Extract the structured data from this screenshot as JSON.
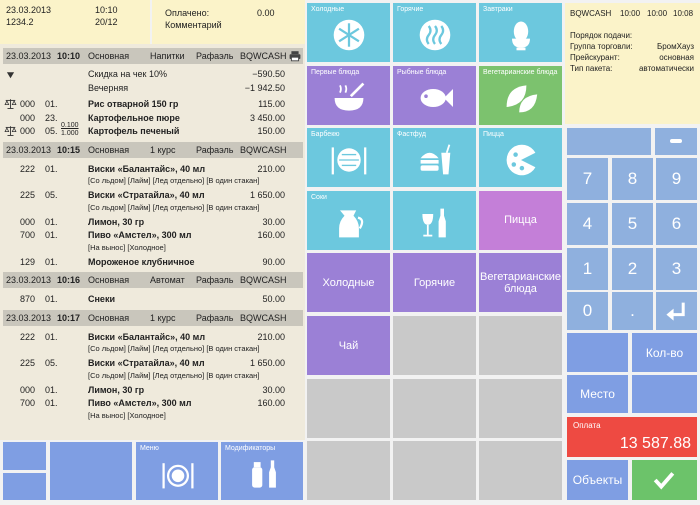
{
  "header": {
    "date": "23.03.2013",
    "time": "10:10",
    "check": "1234.2",
    "table": "20/12",
    "paid_label": "Оплачено:",
    "paid": "0.00",
    "comment": "Комментарий"
  },
  "orders": [
    {
      "date": "23.03.2013",
      "time": "10:10",
      "type": "Основная",
      "course": "Напитки",
      "waiter": "Рафаэль",
      "cashier": "BQWCASH",
      "discounts": [
        {
          "name": "Скидка на чек 10%",
          "amount": "−590.50"
        },
        {
          "name": "Вечерняя",
          "amount": "−1 942.50"
        }
      ],
      "items": [
        {
          "qty": "000",
          "num": "01.",
          "name": "Рис отварной 150 гр",
          "price": "115.00"
        },
        {
          "qty": "000",
          "num": "23.",
          "name": "Картофельное пюре",
          "price": "3 450.00"
        },
        {
          "qty": "000",
          "num": "05.",
          "frac": [
            "0.100",
            "1.000"
          ],
          "name": "Картофель печеный",
          "price": "150.00"
        }
      ]
    },
    {
      "date": "23.03.2013",
      "time": "10:15",
      "type": "Основная",
      "course": "1 курс",
      "waiter": "Рафаэль",
      "cashier": "BQWCASH",
      "items": [
        {
          "qty": "222",
          "num": "01.",
          "name": "Виски «Балантайс», 40 мл",
          "price": "210.00",
          "mods": "[Со льдом] [Лайм] [Лед отдельно] [В один стакан]"
        },
        {
          "qty": "225",
          "num": "05.",
          "name": "Виски «Стратайла», 40 мл",
          "price": "1 650.00",
          "mods": "[Со льдом] [Лайм] [Лед отдельно] [В один стакан]"
        },
        {
          "qty": "000",
          "num": "01.",
          "name": "Лимон, 30 гр",
          "price": "30.00"
        },
        {
          "qty": "700",
          "num": "01.",
          "name": "Пиво «Амстел», 300 мл",
          "price": "160.00",
          "mods": "[На вынос] [Холодное]"
        },
        {
          "qty": "129",
          "num": "01.",
          "name": "Мороженое клубничное",
          "price": "90.00"
        }
      ]
    },
    {
      "date": "23.03.2013",
      "time": "10:16",
      "type": "Основная",
      "course": "Автомат",
      "waiter": "Рафаэль",
      "cashier": "BQWCASH",
      "items": [
        {
          "qty": "870",
          "num": "01.",
          "name": "Снеки",
          "price": "50.00"
        }
      ]
    },
    {
      "date": "23.03.2013",
      "time": "10:17",
      "type": "Основная",
      "course": "1 курс",
      "waiter": "Рафаэль",
      "cashier": "BQWCASH",
      "items": [
        {
          "qty": "222",
          "num": "01.",
          "name": "Виски «Балантайс», 40 мл",
          "price": "210.00",
          "mods": "[Со льдом] [Лайм] [Лед отдельно] [В один стакан]"
        },
        {
          "qty": "225",
          "num": "05.",
          "name": "Виски «Стратайла», 40 мл",
          "price": "1 650.00",
          "mods": "[Со льдом] [Лайм] [Лед отдельно] [В один стакан]"
        },
        {
          "qty": "000",
          "num": "01.",
          "name": "Лимон, 30 гр",
          "price": "30.00"
        },
        {
          "qty": "700",
          "num": "01.",
          "name": "Пиво «Амстел», 300 мл",
          "price": "160.00",
          "mods": "[На вынос] [Холодное]"
        }
      ]
    }
  ],
  "footer_buttons": [
    "Меню",
    "Модификаторы"
  ],
  "menu": {
    "categories": [
      "Холодные",
      "Горячие",
      "Завтраки",
      "Первые блюда",
      "Рыбные блюда",
      "Вегетарианские блюда",
      "Барбекю",
      "Фастфуд",
      "Пицца",
      "Соки"
    ],
    "groups": [
      "Пицца",
      "Холодные",
      "Горячие",
      "Вегетарианские блюда",
      "Чай"
    ]
  },
  "info": {
    "cashier": "BQWCASH",
    "times": [
      "10:00",
      "10:00",
      "10:08"
    ],
    "rows": [
      {
        "label": "Порядок подачи:"
      },
      {
        "label": "Группа торговли:",
        "value": "БромХауз"
      },
      {
        "label": "Прейскурант:",
        "value": "основная"
      },
      {
        "label": "Тип пакета:",
        "value": "автоматически"
      }
    ]
  },
  "keypad": {
    "keys": [
      "7",
      "8",
      "9",
      "4",
      "5",
      "6",
      "1",
      "2",
      "3",
      "0",
      "."
    ],
    "quantity": "Кол-во",
    "place": "Место",
    "payment_label": "Оплата",
    "payment": "13 587.88",
    "objects": "Объекты"
  }
}
